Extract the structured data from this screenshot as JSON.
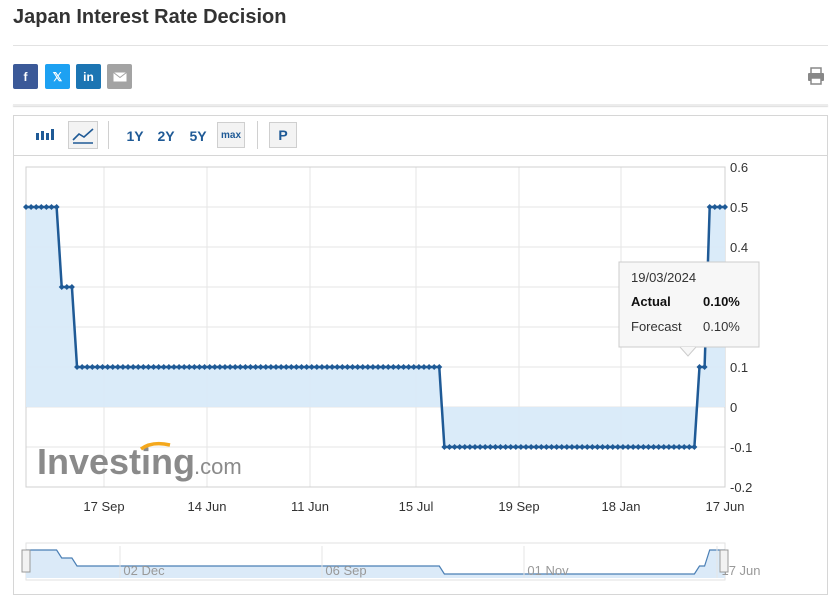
{
  "page": {
    "title": "Japan Interest Rate Decision"
  },
  "share": {
    "facebook": "f",
    "twitter": "𝕏",
    "linkedin": "in"
  },
  "toolbar": {
    "range_1y": "1Y",
    "range_2y": "2Y",
    "range_5y": "5Y",
    "range_max": "max",
    "p_button": "P"
  },
  "watermark": {
    "brand": "Investing",
    "suffix": ".com"
  },
  "tooltip": {
    "date": "19/03/2024",
    "actual_label": "Actual",
    "actual_value": "0.10%",
    "forecast_label": "Forecast",
    "forecast_value": "0.10%"
  },
  "navigator": {
    "labels": [
      "02 Dec",
      "06 Sep",
      "01 Nov",
      "17 Jun"
    ]
  },
  "colors": {
    "line": "#1f5a96",
    "area": "#d8eaf9",
    "accent": "#1f5a96"
  },
  "chart_data": {
    "type": "area",
    "ylim": [
      -0.2,
      0.6
    ],
    "yticks": [
      "0.6",
      "0.5",
      "0.4",
      "0.3",
      "0.2",
      "0.1",
      "0",
      "-0.1",
      "-0.2"
    ],
    "xticks": [
      "17 Sep",
      "14 Jun",
      "11 Jun",
      "15 Jul",
      "19 Sep",
      "18 Jan",
      "17 Jun"
    ],
    "series": [
      {
        "segments": [
          {
            "value": 0.5,
            "points": 7
          },
          {
            "value": 0.3,
            "points": 3
          },
          {
            "value": 0.1,
            "points": 72
          },
          {
            "value": -0.1,
            "points": 50
          },
          {
            "value": 0.1,
            "points": 2
          },
          {
            "value": 0.5,
            "points": 4
          }
        ]
      }
    ],
    "grid": true
  }
}
